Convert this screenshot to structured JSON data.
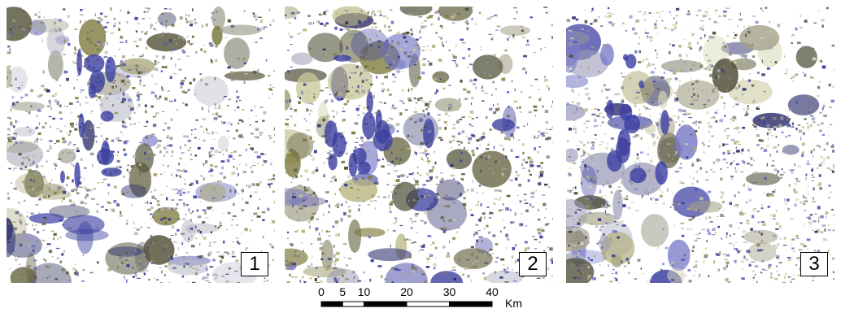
{
  "panels": [
    {
      "label": "1",
      "palette": [
        "#3a3fa0",
        "#5a5fb8",
        "#8a8ca0",
        "#6c6a4a",
        "#7d7a40",
        "#9a9a8a",
        "#b8b8c8",
        "#2f3070",
        "#a8a67a",
        "#55553a"
      ]
    },
    {
      "label": "2",
      "palette": [
        "#3b3e9e",
        "#6a6cc0",
        "#6b6a48",
        "#807d3e",
        "#4a4a32",
        "#c8c89a",
        "#9a9880",
        "#2e2f6e",
        "#b5b27a",
        "#8e8ea8"
      ]
    },
    {
      "label": "3",
      "palette": [
        "#3c3fa2",
        "#7a7cc8",
        "#c9c8a0",
        "#b0ae7c",
        "#8a8870",
        "#d8d8b8",
        "#9a9ab8",
        "#4e4d38",
        "#a5a28a",
        "#30316e"
      ]
    }
  ],
  "scale_bar": {
    "ticks": [
      "0",
      "5",
      "10",
      "20",
      "30",
      "40"
    ],
    "tick_km": [
      0,
      5,
      10,
      20,
      30,
      40
    ],
    "max_km": 40,
    "unit": "Km"
  }
}
